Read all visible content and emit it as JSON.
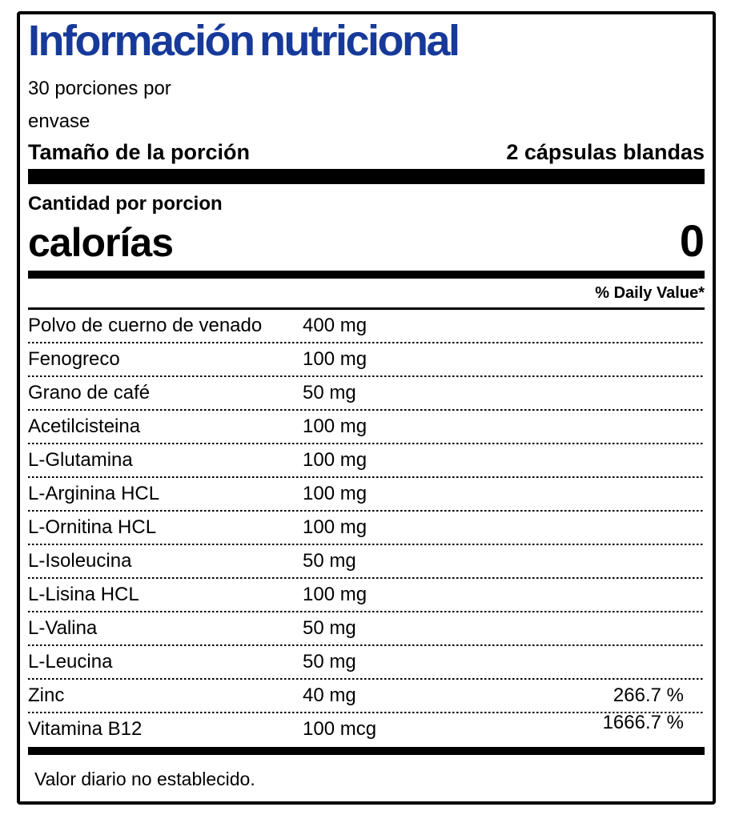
{
  "label": {
    "title": "Información nutricional",
    "title_color": "#173a9a",
    "text_color": "#000000",
    "servings_line1": "30 porciones por",
    "servings_line2": "envase",
    "serving_size_label": "Tamaño de la porción",
    "serving_size_value": "2 cápsulas blandas",
    "amount_per_serving_label": "Cantidad por porcion",
    "calories_label": "calorías",
    "calories_value": "0",
    "daily_value_header": "% Daily Value*",
    "footnote": "Valor diario no establecido.",
    "nutrients": [
      {
        "name": "Polvo de cuerno de venado",
        "amount": "400 mg",
        "pct": ""
      },
      {
        "name": "Fenogreco",
        "amount": "100 mg",
        "pct": ""
      },
      {
        "name": "Grano de café",
        "amount": "50 mg",
        "pct": ""
      },
      {
        "name": "Acetilcisteina",
        "amount": "100 mg",
        "pct": ""
      },
      {
        "name": "L-Glutamina",
        "amount": "100 mg",
        "pct": ""
      },
      {
        "name": "L-Arginina HCL",
        "amount": "100 mg",
        "pct": ""
      },
      {
        "name": "L-Ornitina HCL",
        "amount": "100 mg",
        "pct": ""
      },
      {
        "name": "L-Isoleucina",
        "amount": "50 mg",
        "pct": ""
      },
      {
        "name": "L-Lisina HCL",
        "amount": "100 mg",
        "pct": ""
      },
      {
        "name": "L-Valina",
        "amount": "50 mg",
        "pct": ""
      },
      {
        "name": "L-Leucina",
        "amount": "50 mg",
        "pct": ""
      },
      {
        "name": "Zinc",
        "amount": "40 mg",
        "pct": "266.7 %"
      },
      {
        "name": "Vitamina B12",
        "amount": "100 mcg",
        "pct": "1666.7 %"
      }
    ]
  }
}
